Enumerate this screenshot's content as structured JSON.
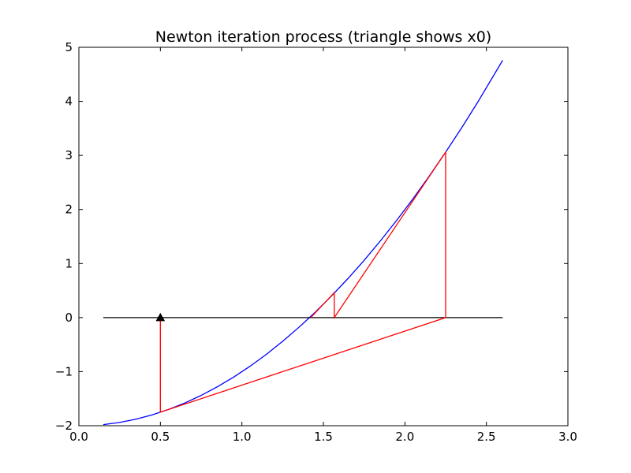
{
  "chart_data": {
    "type": "line",
    "title": "Newton iteration process (triangle shows x0)",
    "xlabel": "",
    "ylabel": "",
    "xlim": [
      0.0,
      3.0
    ],
    "ylim": [
      -2,
      5
    ],
    "grid": false,
    "x_ticks": [
      0.0,
      0.5,
      1.0,
      1.5,
      2.0,
      2.5,
      3.0
    ],
    "x_tick_labels": [
      "0.0",
      "0.5",
      "1.0",
      "1.5",
      "2.0",
      "2.5",
      "3.0"
    ],
    "y_ticks": [
      -2,
      -1,
      0,
      1,
      2,
      3,
      4,
      5
    ],
    "y_tick_labels": [
      "−2",
      "−1",
      "0",
      "1",
      "2",
      "3",
      "4",
      "5"
    ],
    "series": [
      {
        "type": "line",
        "color": "#0000ff",
        "x": [
          0.15,
          0.25,
          0.35,
          0.45,
          0.55,
          0.65,
          0.75,
          0.85,
          0.95,
          1.05,
          1.15,
          1.25,
          1.35,
          1.45,
          1.55,
          1.65,
          1.75,
          1.85,
          1.95,
          2.05,
          2.15,
          2.25,
          2.35,
          2.45,
          2.6
        ],
        "y": [
          -1.98,
          -1.94,
          -1.88,
          -1.8,
          -1.7,
          -1.58,
          -1.44,
          -1.28,
          -1.1,
          -0.9,
          -0.68,
          -0.44,
          -0.18,
          0.1,
          0.4,
          0.72,
          1.06,
          1.42,
          1.8,
          2.2,
          2.62,
          3.06,
          3.52,
          4.0,
          4.76
        ]
      },
      {
        "type": "line",
        "color": "#000000",
        "x": [
          0.15,
          2.6
        ],
        "y": [
          0,
          0
        ]
      },
      {
        "type": "line",
        "color": "#ff0000",
        "x": [
          0.5,
          0.5,
          2.25,
          2.25,
          1.567,
          1.567,
          1.422
        ],
        "y": [
          0,
          -1.75,
          0,
          3.06,
          0,
          0.46,
          0
        ]
      }
    ],
    "markers": [
      {
        "shape": "triangle-up",
        "color": "#000000",
        "x": 0.5,
        "y": 0
      }
    ]
  }
}
